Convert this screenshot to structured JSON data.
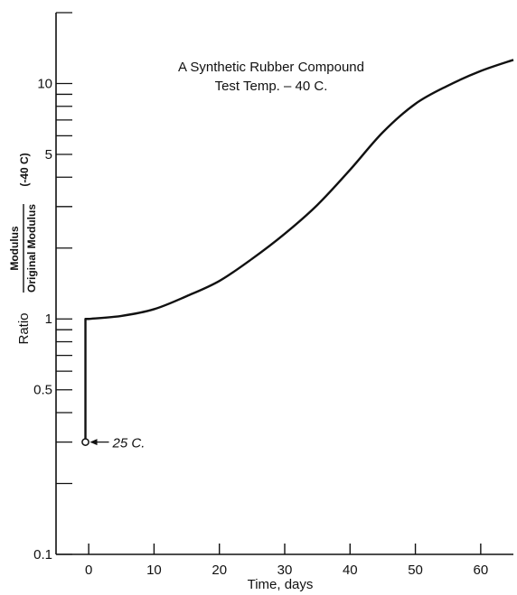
{
  "chart_data": {
    "type": "line",
    "title": "A Synthetic Rubber Compound",
    "subtitle": "Test Temp. – 40 C.",
    "xlabel": "Time, days",
    "ylabel": {
      "prefix": "Ratio",
      "numerator": "Modulus",
      "denominator": "Original Modulus",
      "suffix": "(-40 C)"
    },
    "x_scale": "linear",
    "y_scale": "log",
    "xlim": [
      -5,
      65
    ],
    "ylim": [
      0.1,
      20
    ],
    "x_ticks": [
      0,
      10,
      20,
      30,
      40,
      50,
      60
    ],
    "x_tick_labels": [
      "0",
      "10",
      "20",
      "30",
      "40",
      "50",
      "60"
    ],
    "y_labeled_ticks": [
      0.1,
      0.5,
      1,
      5,
      10
    ],
    "y_tick_labels": [
      "0.1",
      "0.5",
      "1",
      "5",
      "10"
    ],
    "y_minor_ticks": [
      0.2,
      0.3,
      0.4,
      0.6,
      0.7,
      0.8,
      0.9,
      2,
      3,
      4,
      6,
      7,
      8,
      9,
      20
    ],
    "grid": false,
    "series": [
      {
        "x": [
          -0.5,
          -0.5,
          0,
          5,
          10,
          15,
          20,
          25,
          30,
          35,
          40,
          45,
          50,
          55,
          60,
          65
        ],
        "y": [
          0.3,
          1.0,
          1.0,
          1.03,
          1.1,
          1.25,
          1.45,
          1.8,
          2.3,
          3.05,
          4.3,
          6.2,
          8.2,
          9.8,
          11.3,
          12.6
        ]
      }
    ],
    "annotations": [
      {
        "text": "25 C.",
        "x": -0.5,
        "y": 0.3,
        "marker": "open-circle",
        "arrow": true
      }
    ]
  }
}
